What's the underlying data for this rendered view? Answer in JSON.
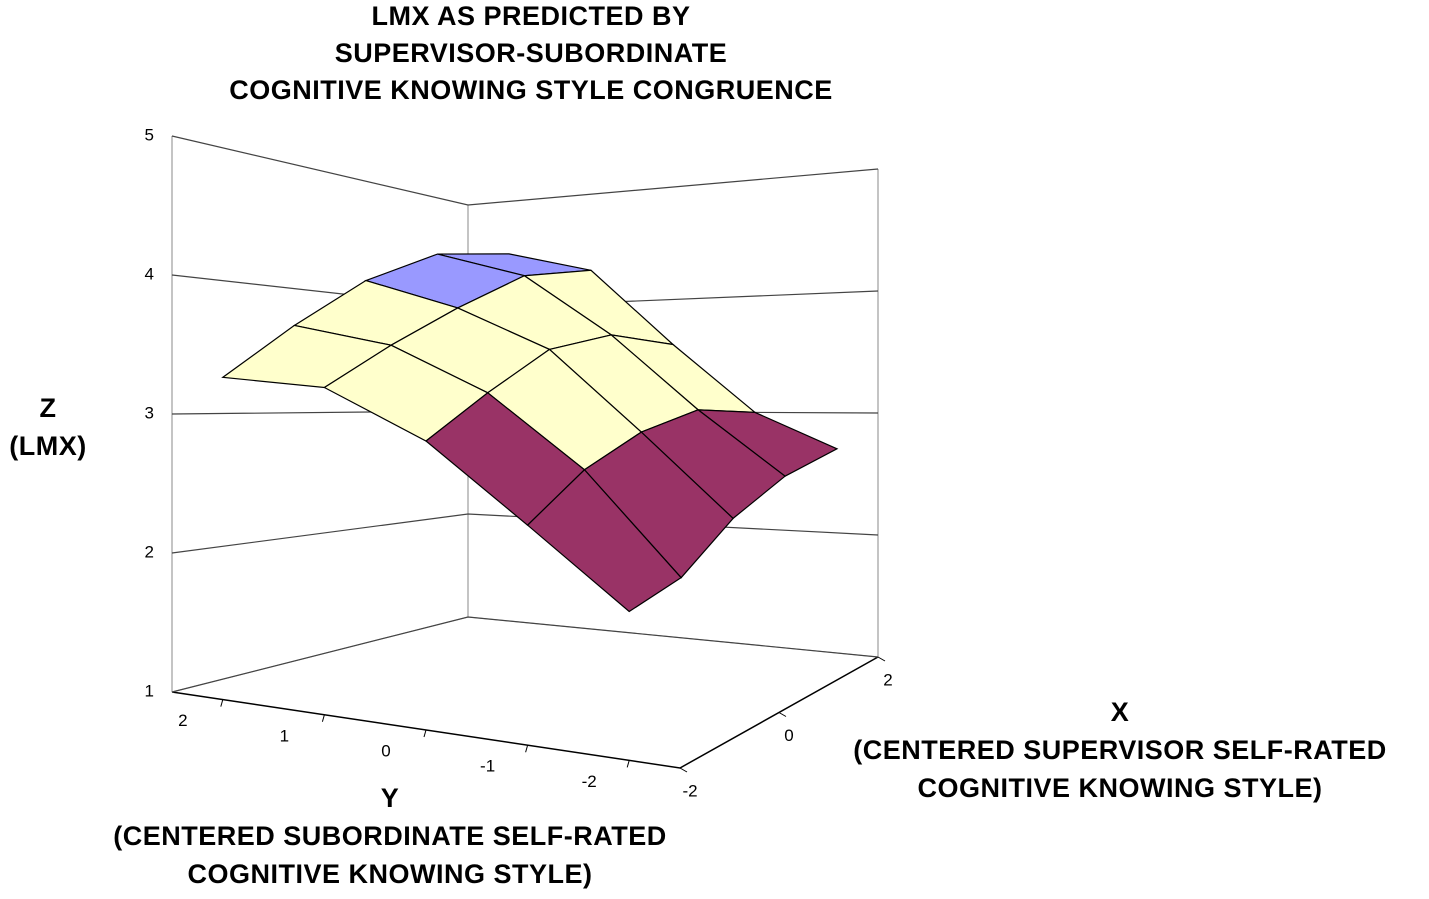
{
  "chart_data": {
    "type": "surface",
    "title": [
      "LMX AS PREDICTED  BY",
      "SUPERVISOR-SUBORDINATE",
      "COGNITIVE  KNOWING  STYLE  CONGRUENCE"
    ],
    "x_label": [
      "X",
      "(CENTERED  SUPERVISOR  SELF-RATED",
      "COGNITIVE  KNOWING  STYLE)"
    ],
    "y_label": [
      "Y",
      "(CENTERED  SUBORDINATE  SELF-RATED",
      "COGNITIVE  KNOWING  STYLE)"
    ],
    "z_label": [
      "Z",
      "(LMX)"
    ],
    "x": [
      -2,
      -1,
      0,
      1,
      2
    ],
    "y": [
      -2,
      -1,
      0,
      1,
      2
    ],
    "z": [
      [
        2.0,
        2.1,
        2.4,
        2.6,
        2.7
      ],
      [
        2.5,
        2.8,
        3.0,
        3.1,
        3.0
      ],
      [
        3.0,
        3.3,
        3.6,
        3.7,
        3.6
      ],
      [
        3.3,
        3.6,
        3.9,
        4.2,
        4.3
      ],
      [
        3.3,
        3.7,
        4.1,
        4.4,
        4.5
      ]
    ],
    "xlim": [
      -2,
      2
    ],
    "ylim": [
      -2.5,
      2.5
    ],
    "zlim": [
      1,
      5
    ],
    "xticks": [
      -2,
      0,
      2
    ],
    "yticks": [
      -2,
      -1,
      0,
      1,
      2
    ],
    "zticks": [
      1,
      2,
      3,
      4,
      5
    ],
    "band_colors": [
      "#993366",
      "#993366",
      "#ffffcc",
      "#9999ff"
    ],
    "grid": true
  }
}
